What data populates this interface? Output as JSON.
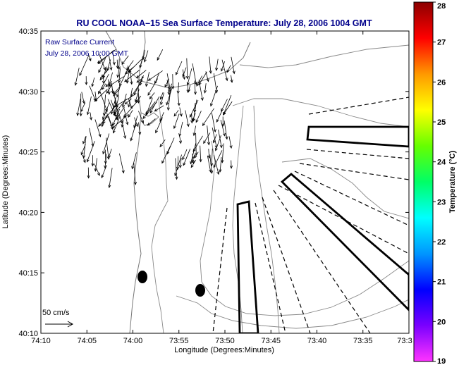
{
  "map": {
    "title": "RU COOL  NOAA–15  Sea Surface Temperature:  July 28, 2006 1004 GMT",
    "inset_line1": "Raw Surface Current",
    "inset_line2": "July 28, 2006 10:00 GMT",
    "xlabel": "Longitude (Degrees:Minutes)",
    "ylabel": "Latitude (Degrees:Minutes)",
    "x_ticks": [
      "74:10",
      "74:05",
      "74:00",
      "73:55",
      "73:50",
      "73:45",
      "73:40",
      "73:35",
      "73:3"
    ],
    "y_ticks": [
      "40:35",
      "40:30",
      "40:25",
      "40:20",
      "40:15",
      "40:10"
    ],
    "scale_label": "50 cm/s",
    "colorbar": {
      "title": "Temperature (°C)",
      "ticks": [
        "28",
        "27",
        "26",
        "25",
        "24",
        "23",
        "22",
        "21",
        "20",
        "19"
      ],
      "range": [
        19,
        28
      ],
      "stops": [
        "#ff33ff",
        "#7a00ff",
        "#0000ff",
        "#0096ff",
        "#00ffff",
        "#00ff66",
        "#66ff00",
        "#ffff00",
        "#ff9900",
        "#ff0000",
        "#8b0000"
      ]
    }
  }
}
